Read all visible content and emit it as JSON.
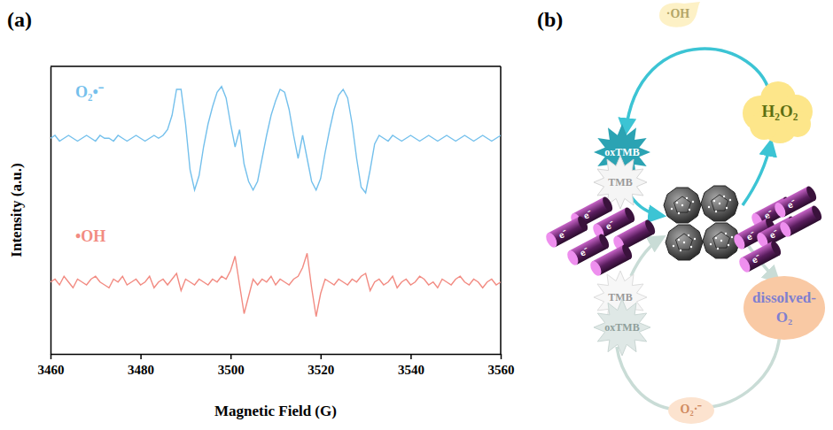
{
  "chart_data": {
    "type": "line",
    "title": "(a)",
    "x_label": "Magnetic Field (G)",
    "y_label": "Intensity (a.u.)",
    "x": [
      3460,
      3461,
      3462,
      3463,
      3464,
      3465,
      3466,
      3467,
      3468,
      3469,
      3470,
      3471,
      3472,
      3473,
      3474,
      3475,
      3476,
      3477,
      3478,
      3479,
      3480,
      3481,
      3482,
      3483,
      3484,
      3485,
      3486,
      3487,
      3488,
      3489,
      3490,
      3491,
      3492,
      3493,
      3494,
      3495,
      3496,
      3497,
      3498,
      3499,
      3500,
      3501,
      3502,
      3503,
      3504,
      3505,
      3506,
      3507,
      3508,
      3509,
      3510,
      3511,
      3512,
      3513,
      3514,
      3515,
      3516,
      3517,
      3518,
      3519,
      3520,
      3521,
      3522,
      3523,
      3524,
      3525,
      3526,
      3527,
      3528,
      3529,
      3530,
      3531,
      3532,
      3533,
      3534,
      3535,
      3536,
      3537,
      3538,
      3539,
      3540,
      3541,
      3542,
      3543,
      3544,
      3545,
      3546,
      3547,
      3548,
      3549,
      3550,
      3551,
      3552,
      3553,
      3554,
      3555,
      3556,
      3557,
      3558,
      3559,
      3560
    ],
    "series": [
      {
        "name": "O₂•⁻",
        "color": "#74c0ec",
        "values": [
          75,
          76,
          74,
          75,
          76,
          75,
          74,
          75,
          76,
          75,
          74,
          76,
          75,
          75,
          74,
          76,
          75,
          74,
          75,
          76,
          75,
          74,
          75,
          76,
          75,
          76,
          78,
          83,
          92,
          92,
          80,
          64,
          57,
          62,
          72,
          80,
          86,
          91,
          93,
          89,
          80,
          72,
          78,
          66,
          60,
          57,
          60,
          68,
          76,
          83,
          88,
          92,
          91,
          85,
          76,
          68,
          76,
          68,
          60,
          57,
          61,
          70,
          78,
          85,
          90,
          92,
          89,
          80,
          68,
          58,
          56,
          64,
          73,
          76,
          75,
          74,
          76,
          75,
          74,
          75,
          76,
          75,
          74,
          75,
          76,
          75,
          74,
          75,
          76,
          75,
          74,
          75,
          76,
          75,
          74,
          75,
          76,
          75,
          74,
          75,
          76
        ]
      },
      {
        "name": "•OH",
        "color": "#f28b82",
        "values": [
          25,
          26,
          24,
          27,
          25,
          23,
          26,
          25,
          24,
          26,
          27,
          25,
          24,
          23,
          26,
          25,
          27,
          24,
          25,
          26,
          24,
          25,
          27,
          23,
          25,
          26,
          24,
          26,
          28,
          22,
          26,
          25,
          24,
          26,
          25,
          24,
          26,
          25,
          27,
          26,
          29,
          34,
          24,
          14,
          20,
          26,
          24,
          26,
          25,
          27,
          24,
          26,
          25,
          24,
          26,
          27,
          30,
          35,
          23,
          13,
          21,
          26,
          25,
          24,
          26,
          25,
          24,
          26,
          25,
          27,
          28,
          22,
          25,
          26,
          24,
          25,
          27,
          23,
          25,
          26,
          24,
          25,
          27,
          26,
          24,
          25,
          23,
          26,
          25,
          24,
          26,
          27,
          25,
          24,
          26,
          25,
          23,
          25,
          26,
          24,
          25
        ]
      }
    ],
    "xlim": [
      3460,
      3560
    ],
    "xticks": [
      3460,
      3480,
      3500,
      3520,
      3540,
      3560
    ],
    "ylim": [
      0,
      100
    ],
    "yticks": [],
    "tick_labels": "x",
    "grid": false
  },
  "diagram": {
    "label": "(b)",
    "upper_cycle": {
      "radical": "·OH",
      "oxidant": "H₂O₂",
      "product": "oxTMB",
      "substrate": "TMB"
    },
    "lower_cycle": {
      "oxidant": "dissolved-O₂",
      "radical": "O₂·⁻",
      "substrate": "TMB",
      "product": "oxTMB"
    },
    "electron": "e⁻"
  }
}
